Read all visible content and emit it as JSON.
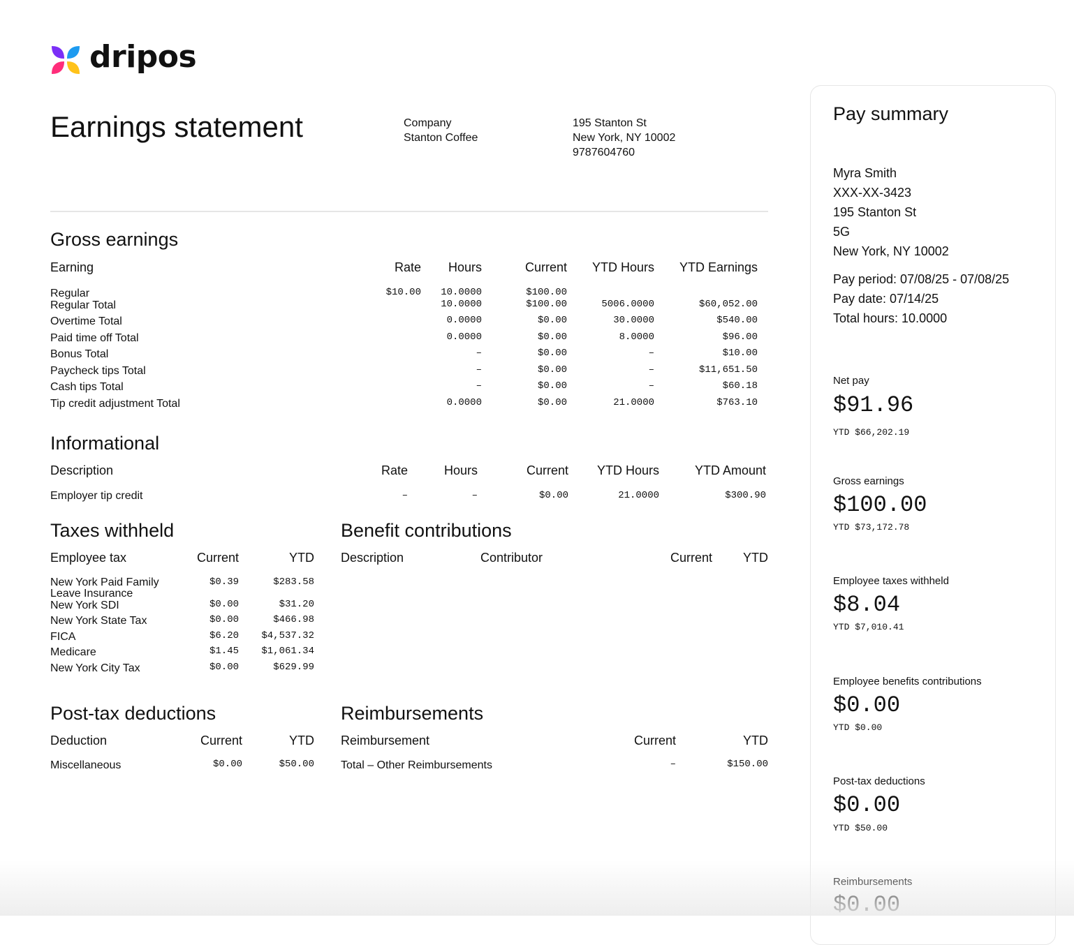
{
  "brand": {
    "name": "dripos"
  },
  "header": {
    "title": "Earnings statement",
    "company_label": "Company",
    "company_name": "Stanton Coffee",
    "address_line1": "195 Stanton St",
    "address_line2": "New York, NY 10002",
    "phone": "9787604760"
  },
  "gross": {
    "heading": "Gross earnings",
    "columns": [
      "Earning",
      "Rate",
      "Hours",
      "Current",
      "YTD Hours",
      "YTD Earnings"
    ],
    "rows": [
      {
        "label": "Regular",
        "rate": "$10.00",
        "hours": "10.0000",
        "current": "$100.00",
        "ytd_hours": "",
        "ytd_earnings": ""
      },
      {
        "label": "Regular Total",
        "rate": "",
        "hours": "10.0000",
        "current": "$100.00",
        "ytd_hours": "5006.0000",
        "ytd_earnings": "$60,052.00"
      },
      {
        "label": "Overtime Total",
        "rate": "",
        "hours": "0.0000",
        "current": "$0.00",
        "ytd_hours": "30.0000",
        "ytd_earnings": "$540.00"
      },
      {
        "label": "Paid time off Total",
        "rate": "",
        "hours": "0.0000",
        "current": "$0.00",
        "ytd_hours": "8.0000",
        "ytd_earnings": "$96.00"
      },
      {
        "label": "Bonus Total",
        "rate": "",
        "hours": "–",
        "current": "$0.00",
        "ytd_hours": "–",
        "ytd_earnings": "$10.00"
      },
      {
        "label": "Paycheck tips Total",
        "rate": "",
        "hours": "–",
        "current": "$0.00",
        "ytd_hours": "–",
        "ytd_earnings": "$11,651.50"
      },
      {
        "label": "Cash tips Total",
        "rate": "",
        "hours": "–",
        "current": "$0.00",
        "ytd_hours": "–",
        "ytd_earnings": "$60.18"
      },
      {
        "label": "Tip credit adjustment Total",
        "rate": "",
        "hours": "0.0000",
        "current": "$0.00",
        "ytd_hours": "21.0000",
        "ytd_earnings": "$763.10"
      }
    ]
  },
  "informational": {
    "heading": "Informational",
    "columns": [
      "Description",
      "Rate",
      "Hours",
      "Current",
      "YTD Hours",
      "YTD Amount"
    ],
    "rows": [
      {
        "label": "Employer tip credit",
        "rate": "–",
        "hours": "–",
        "current": "$0.00",
        "ytd_hours": "21.0000",
        "ytd_amount": "$300.90"
      }
    ]
  },
  "taxes": {
    "heading": "Taxes withheld",
    "columns": [
      "Employee tax",
      "Current",
      "YTD"
    ],
    "rows": [
      {
        "label": "New York Paid Family Leave Insurance",
        "current": "$0.39",
        "ytd": "$283.58"
      },
      {
        "label": "New York SDI",
        "current": "$0.00",
        "ytd": "$31.20"
      },
      {
        "label": "New York State Tax",
        "current": "$0.00",
        "ytd": "$466.98"
      },
      {
        "label": "FICA",
        "current": "$6.20",
        "ytd": "$4,537.32"
      },
      {
        "label": "Medicare",
        "current": "$1.45",
        "ytd": "$1,061.34"
      },
      {
        "label": "New York City Tax",
        "current": "$0.00",
        "ytd": "$629.99"
      }
    ]
  },
  "benefits": {
    "heading": "Benefit contributions",
    "columns": [
      "Description",
      "Contributor",
      "Current",
      "YTD"
    ]
  },
  "posttax": {
    "heading": "Post-tax deductions",
    "columns": [
      "Deduction",
      "Current",
      "YTD"
    ],
    "rows": [
      {
        "label": "Miscellaneous",
        "current": "$0.00",
        "ytd": "$50.00"
      }
    ]
  },
  "reimbursements": {
    "heading": "Reimbursements",
    "columns": [
      "Reimbursement",
      "Current",
      "YTD"
    ],
    "rows": [
      {
        "label": "Total – Other Reimbursements",
        "current": "–",
        "ytd": "$150.00"
      }
    ]
  },
  "summary": {
    "title": "Pay summary",
    "employee": {
      "name": "Myra Smith",
      "ssn": "XXX-XX-3423",
      "street": "195 Stanton St",
      "unit": "5G",
      "city": "New York, NY 10002"
    },
    "pay_period": "Pay period: 07/08/25 - 07/08/25",
    "pay_date": "Pay date: 07/14/25",
    "total_hours": "Total hours: 10.0000",
    "items": [
      {
        "label": "Net pay",
        "amount": "$91.96",
        "ytd": "YTD $66,202.19"
      },
      {
        "label": "Gross earnings",
        "amount": "$100.00",
        "ytd": "YTD $73,172.78"
      },
      {
        "label": "Employee taxes withheld",
        "amount": "$8.04",
        "ytd": "YTD $7,010.41"
      },
      {
        "label": "Employee benefits contributions",
        "amount": "$0.00",
        "ytd": "YTD $0.00"
      },
      {
        "label": "Post-tax deductions",
        "amount": "$0.00",
        "ytd": "YTD $50.00"
      },
      {
        "label": "Reimbursements",
        "amount": "$0.00",
        "ytd": ""
      }
    ]
  }
}
